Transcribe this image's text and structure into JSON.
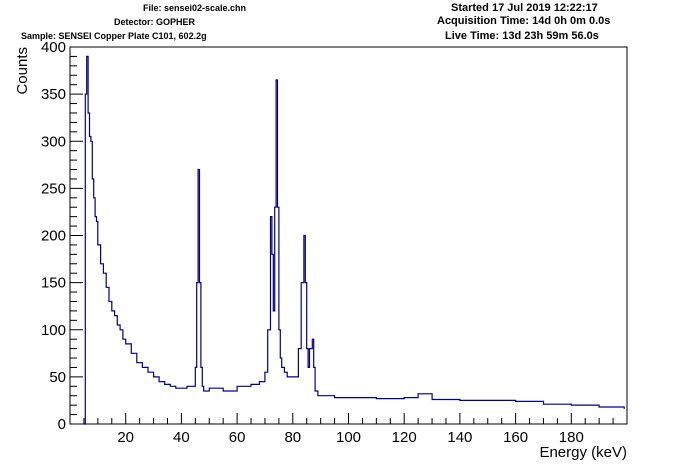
{
  "header": {
    "file": "File: sensei02-scale.chn",
    "detector": "Detector: GOPHER",
    "sample": "Sample: SENSEI Copper Plate C101, 602.2g",
    "started": "Started 17 Jul 2019 12:22:17",
    "acquisition": "Acquisition Time: 14d 0h 0m 0.0s",
    "live": "Live Time: 13d 23h 59m 56.0s"
  },
  "colors": {
    "series": "#00008b",
    "axis": "#000000"
  },
  "chart_data": {
    "type": "line",
    "xlabel": "Energy (keV)",
    "ylabel": "Counts",
    "xlim": [
      0,
      200
    ],
    "ylim": [
      0,
      400
    ],
    "x_ticks": [
      20,
      40,
      60,
      80,
      100,
      120,
      140,
      160,
      180
    ],
    "x_tick_labels": [
      "20",
      "40",
      "60",
      "80",
      "100",
      "120",
      "140",
      "160",
      "180"
    ],
    "y_ticks": [
      0,
      50,
      100,
      150,
      200,
      250,
      300,
      350,
      400
    ],
    "y_tick_labels": [
      "0",
      "50",
      "100",
      "150",
      "200",
      "250",
      "300",
      "350",
      "400"
    ],
    "grid": false,
    "series": [
      {
        "x": [
          5,
          5.5,
          6,
          6.5,
          7,
          7.5,
          8,
          8.5,
          9,
          9.5,
          10,
          11,
          12,
          13,
          14,
          15,
          16,
          17,
          18,
          19,
          20,
          22,
          24,
          26,
          28,
          30,
          32,
          34,
          36,
          38,
          40,
          42,
          44,
          45,
          45.5,
          46,
          46.5,
          47,
          47.5,
          48,
          50,
          55,
          60,
          65,
          68,
          70,
          71,
          72,
          72.5,
          73,
          73.5,
          74,
          74.5,
          75,
          75.5,
          76,
          77,
          78,
          80,
          82,
          83,
          84,
          84.5,
          85,
          85.5,
          86,
          87,
          87.5,
          88,
          89,
          90,
          95,
          100,
          110,
          120,
          125,
          130,
          140,
          150,
          160,
          170,
          180,
          190,
          199
        ],
        "y": [
          0,
          350,
          390,
          330,
          305,
          300,
          260,
          240,
          220,
          215,
          190,
          170,
          160,
          145,
          130,
          120,
          115,
          105,
          100,
          90,
          85,
          75,
          65,
          60,
          55,
          50,
          45,
          42,
          40,
          38,
          38,
          40,
          40,
          60,
          150,
          270,
          150,
          60,
          40,
          35,
          38,
          35,
          40,
          42,
          45,
          55,
          100,
          220,
          180,
          120,
          230,
          365,
          230,
          100,
          70,
          60,
          55,
          50,
          50,
          80,
          150,
          200,
          150,
          80,
          60,
          80,
          90,
          60,
          35,
          30,
          30,
          28,
          28,
          27,
          28,
          32,
          26,
          25,
          25,
          24,
          21,
          20,
          18,
          16
        ]
      }
    ]
  }
}
